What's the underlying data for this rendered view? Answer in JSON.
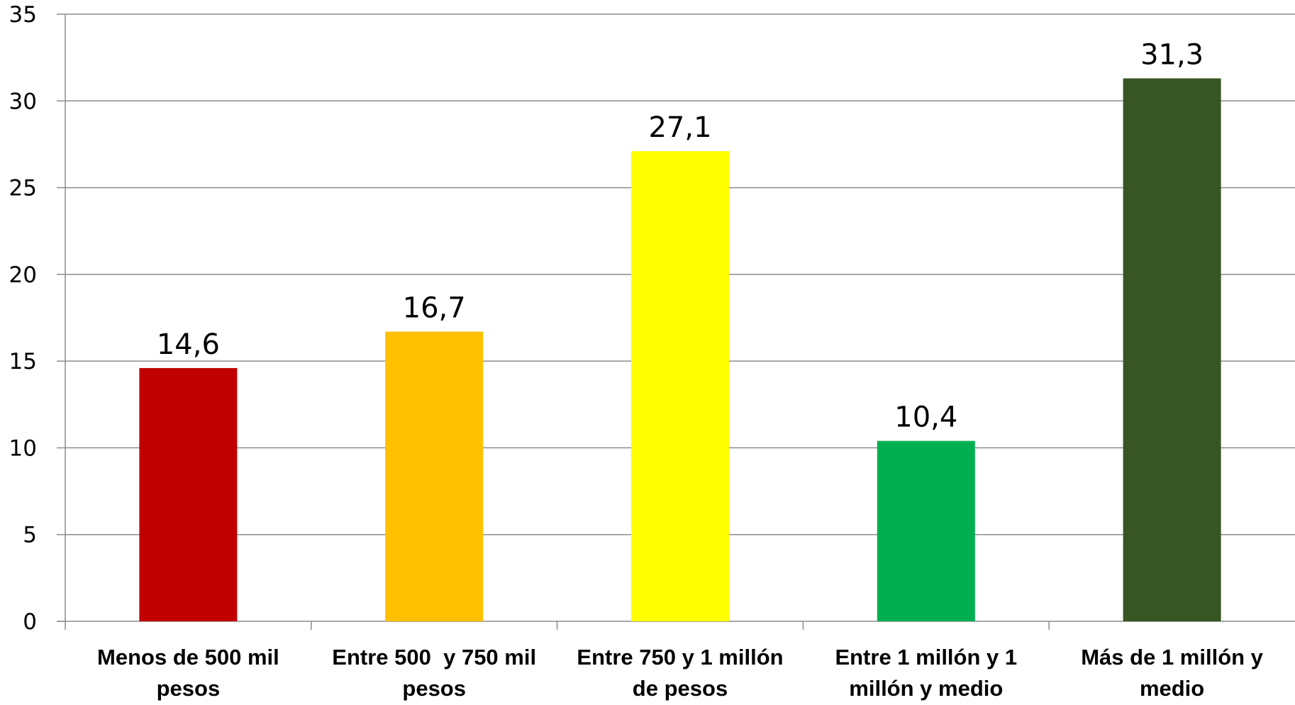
{
  "chart_data": {
    "type": "bar",
    "categories": [
      [
        "Menos de 500 mil",
        "pesos"
      ],
      [
        "Entre 500  y 750 mil",
        "pesos"
      ],
      [
        "Entre 750 y 1 millón",
        "de pesos"
      ],
      [
        "Entre 1 millón y 1",
        "millón y medio"
      ],
      [
        "Más de 1 millón y",
        "medio"
      ]
    ],
    "values": [
      14.6,
      16.7,
      27.1,
      10.4,
      31.3
    ],
    "data_labels": [
      "14,6",
      "16,7",
      "27,1",
      "10,4",
      "31,3"
    ],
    "colors": [
      "#c00000",
      "#ffc000",
      "#ffff00",
      "#00b050",
      "#375623"
    ],
    "ylim": [
      0,
      35
    ],
    "yticks": [
      0,
      5,
      10,
      15,
      20,
      25,
      30,
      35
    ],
    "grid": true,
    "title": "",
    "xlabel": "",
    "ylabel": ""
  }
}
